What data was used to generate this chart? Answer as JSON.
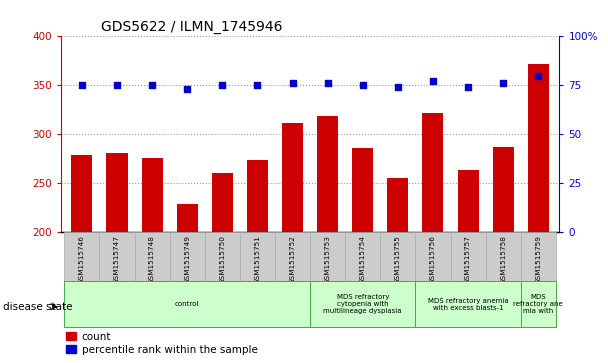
{
  "title": "GDS5622 / ILMN_1745946",
  "samples": [
    "GSM1515746",
    "GSM1515747",
    "GSM1515748",
    "GSM1515749",
    "GSM1515750",
    "GSM1515751",
    "GSM1515752",
    "GSM1515753",
    "GSM1515754",
    "GSM1515755",
    "GSM1515756",
    "GSM1515757",
    "GSM1515758",
    "GSM1515759"
  ],
  "counts": [
    279,
    281,
    276,
    229,
    261,
    274,
    312,
    319,
    286,
    255,
    322,
    264,
    287,
    372
  ],
  "percentiles": [
    75,
    75,
    75,
    73,
    75,
    75,
    76,
    76,
    75,
    74,
    77,
    74,
    76,
    80
  ],
  "bar_color": "#cc0000",
  "dot_color": "#0000cc",
  "ylim_left": [
    200,
    400
  ],
  "ylim_right": [
    0,
    100
  ],
  "yticks_left": [
    200,
    250,
    300,
    350,
    400
  ],
  "yticks_right": [
    0,
    25,
    50,
    75,
    100
  ],
  "disease_groups": [
    {
      "label": "control",
      "start": 0,
      "end": 7
    },
    {
      "label": "MDS refractory\ncytopenia with\nmultilineage dysplasia",
      "start": 7,
      "end": 10
    },
    {
      "label": "MDS refractory anemia\nwith excess blasts-1",
      "start": 10,
      "end": 13
    },
    {
      "label": "MDS\nrefractory ane\nmia with",
      "start": 13,
      "end": 14
    }
  ],
  "xlabel_disease": "disease state",
  "legend_count": "count",
  "legend_percentile": "percentile rank within the sample",
  "bg_color": "#ffffff",
  "tick_label_bg": "#cccccc",
  "group_facecolor": "#ccffcc",
  "group_edgecolor": "#44aa44"
}
